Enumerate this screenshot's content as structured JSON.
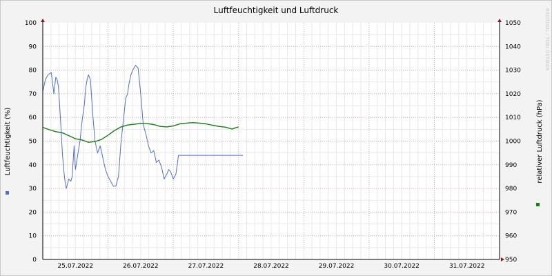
{
  "chart_data": {
    "type": "line",
    "title": "Luftfeuchtigkeit und Luftdruck",
    "watermark": "RRDTOOL / TOBI OETIKER",
    "xlabel": "",
    "ylabel": "Luftfeuchtigkeit (%)",
    "y2label": "relativer Luftdruck (hPa)",
    "ylim": [
      0,
      100
    ],
    "y2lim": [
      950,
      1050
    ],
    "yticks": [
      "0",
      "10",
      "20",
      "30",
      "40",
      "50",
      "60",
      "70",
      "80",
      "90",
      "100"
    ],
    "y2ticks": [
      "950",
      "960",
      "970",
      "980",
      "990",
      "1000",
      "1010",
      "1020",
      "1030",
      "1040",
      "1050"
    ],
    "xlim_days": [
      0,
      7
    ],
    "xticks": [
      {
        "day": 0.5,
        "label": "25.07.2022"
      },
      {
        "day": 1.5,
        "label": "26.07.2022"
      },
      {
        "day": 2.5,
        "label": "27.07.2022"
      },
      {
        "day": 3.5,
        "label": "28.07.2022"
      },
      {
        "day": 4.5,
        "label": "29.07.2022"
      },
      {
        "day": 5.5,
        "label": "30.07.2022"
      },
      {
        "day": 6.5,
        "label": "31.07.2022"
      }
    ],
    "grid": true,
    "series": [
      {
        "name": "",
        "axis": "left",
        "color": "#4f70c8",
        "x": [
          0.0,
          0.04,
          0.08,
          0.13,
          0.17,
          0.19,
          0.2,
          0.22,
          0.24,
          0.27,
          0.3,
          0.32,
          0.34,
          0.36,
          0.38,
          0.4,
          0.43,
          0.45,
          0.48,
          0.5,
          0.54,
          0.57,
          0.6,
          0.62,
          0.64,
          0.65,
          0.66,
          0.68,
          0.7,
          0.73,
          0.77,
          0.8,
          0.84,
          0.88,
          0.92,
          0.96,
          1.0,
          1.04,
          1.08,
          1.12,
          1.16,
          1.2,
          1.24,
          1.27,
          1.3,
          1.32,
          1.35,
          1.38,
          1.42,
          1.46,
          1.5,
          1.54,
          1.58,
          1.62,
          1.66,
          1.7,
          1.74,
          1.78,
          1.82,
          1.86,
          1.9,
          1.93,
          1.96,
          2.0,
          2.04,
          2.08,
          2.12,
          2.16,
          2.2,
          2.24,
          2.28,
          2.32,
          2.36,
          2.4,
          2.44,
          2.46,
          2.48,
          2.52,
          2.55,
          2.58,
          2.62,
          2.66,
          2.7,
          2.74,
          2.78,
          2.82,
          2.86,
          2.9,
          2.93,
          2.96,
          3.0,
          3.04,
          3.07
        ],
        "y": [
          71,
          76,
          78,
          79,
          70,
          75,
          77,
          76,
          73,
          60,
          45,
          38,
          33,
          30,
          32,
          34,
          33,
          35,
          48,
          38,
          45,
          50,
          58,
          62,
          66,
          70,
          73,
          76,
          78,
          76,
          60,
          50,
          45,
          48,
          43,
          38,
          35,
          33,
          31,
          31,
          35,
          50,
          60,
          68,
          70,
          74,
          78,
          80,
          82,
          81,
          70,
          57,
          53,
          48,
          45,
          46,
          41,
          42,
          39,
          34,
          36,
          38,
          37,
          34,
          36,
          44,
          44,
          44,
          44,
          44,
          44,
          44,
          44,
          44,
          44,
          44,
          44,
          44,
          44,
          44,
          44,
          44,
          44,
          44,
          44,
          44,
          44,
          44,
          44,
          44,
          44,
          44,
          44
        ]
      },
      {
        "name": "",
        "axis": "right",
        "color": "#157d15",
        "x": [
          0.0,
          0.1,
          0.2,
          0.3,
          0.4,
          0.5,
          0.6,
          0.65,
          0.7,
          0.8,
          0.9,
          1.0,
          1.1,
          1.2,
          1.3,
          1.4,
          1.5,
          1.6,
          1.7,
          1.8,
          1.9,
          2.0,
          2.1,
          2.2,
          2.3,
          2.4,
          2.5,
          2.6,
          2.7,
          2.8,
          2.9,
          2.95,
          3.0
        ],
        "y": [
          1005.8,
          1004.8,
          1004.0,
          1003.5,
          1002.3,
          1001.0,
          1000.5,
          1000.0,
          999.5,
          999.8,
          1000.7,
          1002.5,
          1004.5,
          1006.0,
          1006.8,
          1007.1,
          1007.5,
          1007.4,
          1007.0,
          1006.2,
          1006.0,
          1006.4,
          1007.3,
          1007.6,
          1007.8,
          1007.6,
          1007.3,
          1006.7,
          1006.2,
          1005.9,
          1005.1,
          1005.6,
          1006.0
        ]
      }
    ]
  }
}
